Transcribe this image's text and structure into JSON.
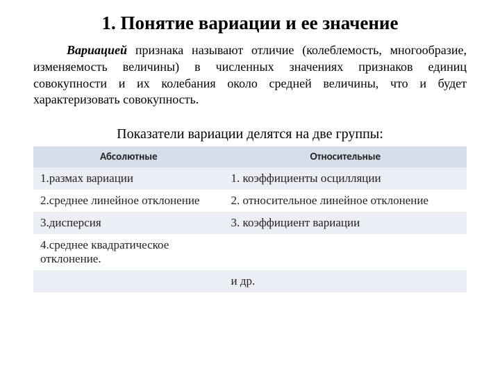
{
  "title": "1. Понятие вариации и ее значение",
  "paragraph": {
    "lead": "Вариацией",
    "rest": " признака называют отличие (колеблемость, многообразие, изменяемость величины) в численных значениях признаков единиц совокупности и их колебания около средней величины, что и будет характеризовать совокупность."
  },
  "subheading": "Показатели вариации делятся на две группы:",
  "table": {
    "columns": [
      "Абсолютные",
      "Относительные"
    ],
    "rows": [
      [
        "1.размах вариации",
        "1. коэффициенты осцилляции"
      ],
      [
        "2.среднее линейное отклонение",
        "2. относительное линейное отклонение"
      ],
      [
        "3.дисперсия",
        "3. коэффициент вариации"
      ],
      [
        "4.среднее квадратическое отклонение.",
        ""
      ],
      [
        "",
        "и др."
      ]
    ],
    "col_widths_pct": [
      44,
      56
    ],
    "header_bg": "#d6dde8",
    "row_bg_odd": "#ebeef5",
    "row_bg_even": "#ffffff",
    "header_font_family": "Calibri, Arial, sans-serif",
    "header_font_size_pt": 11,
    "body_font_size_pt": 13,
    "text_color": "#222222"
  },
  "colors": {
    "background": "#ffffff",
    "text": "#000000"
  },
  "fonts": {
    "body": "Times New Roman",
    "title_size_pt": 20,
    "paragraph_size_pt": 14,
    "subheading_size_pt": 15
  }
}
